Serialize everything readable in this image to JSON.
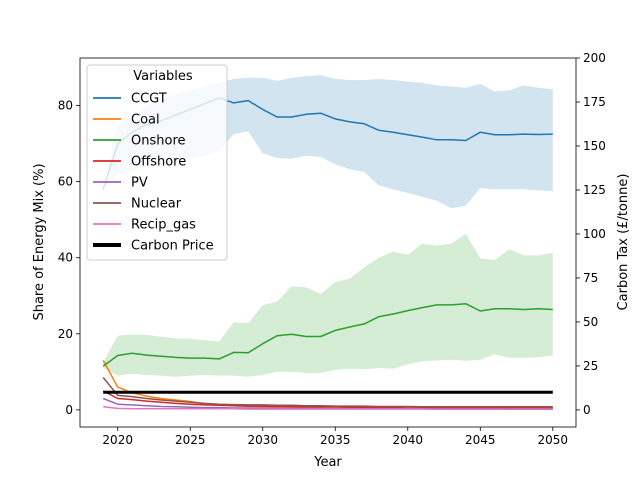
{
  "chart_data": {
    "type": "line",
    "xlabel": "Year",
    "ylabel": "Share of Energy Mix (%)",
    "y2label": "Carbon Tax (£/tonne)",
    "xlim": [
      2017.4,
      2051.6
    ],
    "ylim": [
      -4.5,
      92.5
    ],
    "y2lim": [
      -9.7,
      200
    ],
    "x_ticks": [
      2020,
      2025,
      2030,
      2035,
      2040,
      2045,
      2050
    ],
    "y_ticks": [
      0,
      20,
      40,
      60,
      80
    ],
    "y2_ticks": [
      0,
      25,
      50,
      75,
      100,
      125,
      150,
      175,
      200
    ],
    "legend": {
      "title": "Variables",
      "position": "top-left"
    },
    "x": [
      2019,
      2020,
      2021,
      2022,
      2023,
      2024,
      2025,
      2026,
      2027,
      2028,
      2029,
      2030,
      2031,
      2032,
      2033,
      2034,
      2035,
      2036,
      2037,
      2038,
      2039,
      2040,
      2041,
      2042,
      2043,
      2044,
      2045,
      2046,
      2047,
      2048,
      2049,
      2050
    ],
    "series": [
      {
        "name": "CCGT",
        "color": "#1f77b4",
        "values": [
          58,
          70,
          73,
          75,
          76,
          77.5,
          79,
          80.5,
          82,
          80.7,
          81.3,
          79,
          77,
          77,
          77.7,
          78,
          76.5,
          75.7,
          75.2,
          73.5,
          73,
          72.3,
          71.7,
          71,
          71,
          70.8,
          73,
          72.3,
          72.3,
          72.5,
          72.4,
          72.5
        ],
        "band_low": [
          58,
          62,
          63,
          64,
          64.5,
          65,
          66,
          67,
          68,
          72.5,
          73.2,
          67.5,
          66.2,
          66,
          66.8,
          66.5,
          64.5,
          63.3,
          62.5,
          59,
          58,
          57,
          56,
          55,
          53,
          53.7,
          58.3,
          58,
          58,
          58,
          57.7,
          57.5
        ],
        "band_high": [
          58,
          75,
          77,
          80,
          81.5,
          83,
          84,
          85,
          86,
          87,
          87.3,
          87.3,
          86.5,
          87.3,
          87.7,
          88,
          87,
          86.7,
          86.7,
          87,
          86.7,
          86.3,
          86,
          85.3,
          85,
          84.7,
          85.7,
          83.7,
          84,
          85.3,
          84.7,
          84.3
        ]
      },
      {
        "name": "Coal",
        "color": "#ff7f0e",
        "values": [
          13,
          6,
          4.5,
          3.6,
          3,
          2.6,
          2.2,
          1.6,
          1.3,
          1.1,
          1,
          0.9,
          0.8,
          0.7,
          0.7,
          0.6,
          0.6,
          0.5,
          0.4,
          0.4,
          0.3,
          0.3,
          0.3,
          0.3,
          0.3,
          0.3,
          0.3,
          0.3,
          0.2,
          0.2,
          0.2,
          0.2
        ]
      },
      {
        "name": "Onshore",
        "color": "#2ca02c",
        "values": [
          11.5,
          14.3,
          14.9,
          14.4,
          14.1,
          13.8,
          13.6,
          13.6,
          13.4,
          15.1,
          15,
          17.4,
          19.5,
          19.9,
          19.3,
          19.3,
          20.9,
          21.8,
          22.6,
          24.5,
          25.2,
          26.1,
          26.9,
          27.6,
          27.6,
          27.9,
          26,
          26.6,
          26.6,
          26.4,
          26.6,
          26.4
        ],
        "band_low": [
          11,
          9,
          9.5,
          9.2,
          9,
          8.7,
          9,
          9.2,
          9,
          9,
          8.7,
          9.2,
          10,
          10,
          9.7,
          9.7,
          10.5,
          10.8,
          10.7,
          11,
          10.8,
          12,
          12.8,
          13,
          13.2,
          12.9,
          13.2,
          14.6,
          13.7,
          13.7,
          13.8,
          14.3
        ],
        "band_high": [
          12.5,
          19.5,
          19.8,
          19.7,
          19.2,
          18.8,
          18.7,
          18.3,
          18,
          23,
          22.8,
          27.5,
          28.5,
          32.5,
          32.2,
          30.5,
          33.6,
          34.5,
          37.5,
          40,
          41.6,
          40.8,
          43.7,
          43.2,
          43.7,
          46.3,
          39.8,
          39.4,
          42.2,
          40.6,
          40.6,
          41.3
        ]
      },
      {
        "name": "Offshore",
        "color": "#d62728",
        "values": [
          5,
          3,
          2.7,
          2.3,
          2,
          1.7,
          1.5,
          1.3,
          1.2,
          1.1,
          1,
          1,
          0.9,
          0.9,
          0.8,
          0.8,
          0.8,
          0.7,
          0.7,
          0.6,
          0.6,
          0.5,
          0.5,
          0.5,
          0.5,
          0.5,
          0.5,
          0.5,
          0.5,
          0.5,
          0.5,
          0.5
        ]
      },
      {
        "name": "PV",
        "color": "#9467bd",
        "values": [
          3,
          1.5,
          1.3,
          1.1,
          0.9,
          0.8,
          0.7,
          0.6,
          0.6,
          0.5,
          0.5,
          0.5,
          0.4,
          0.4,
          0.4,
          0.4,
          0.3,
          0.3,
          0.3,
          0.3,
          0.3,
          0.3,
          0.3,
          0.2,
          0.2,
          0.2,
          0.2,
          0.2,
          0.2,
          0.2,
          0.2,
          0.2
        ]
      },
      {
        "name": "Nuclear",
        "color": "#8c564b",
        "values": [
          8.5,
          3.8,
          3.5,
          3,
          2.6,
          2.3,
          2,
          1.7,
          1.5,
          1.4,
          1.3,
          1.3,
          1.2,
          1.2,
          1.1,
          1.1,
          1,
          1,
          1,
          0.9,
          0.9,
          0.9,
          0.8,
          0.8,
          0.8,
          0.8,
          0.8,
          0.8,
          0.8,
          0.8,
          0.8,
          0.8
        ]
      },
      {
        "name": "Recip_gas",
        "color": "#e377c2",
        "values": [
          0.8,
          0.4,
          0.3,
          0.3,
          0.3,
          0.3,
          0.3,
          0.3,
          0.3,
          0.3,
          0.2,
          0.2,
          0.2,
          0.2,
          0.2,
          0.2,
          0.2,
          0.2,
          0.2,
          0.2,
          0.2,
          0.2,
          0.2,
          0.2,
          0.2,
          0.2,
          0.2,
          0.2,
          0.2,
          0.2,
          0.2,
          0.2
        ]
      },
      {
        "name": "Carbon Price",
        "color": "#000000",
        "axis": "right",
        "linewidth": 3,
        "values": [
          10,
          10,
          10,
          10,
          10,
          10,
          10,
          10,
          10,
          10,
          10,
          10,
          10,
          10,
          10,
          10,
          10,
          10,
          10,
          10,
          10,
          10,
          10,
          10,
          10,
          10,
          10,
          10,
          10,
          10,
          10,
          10
        ]
      }
    ]
  }
}
